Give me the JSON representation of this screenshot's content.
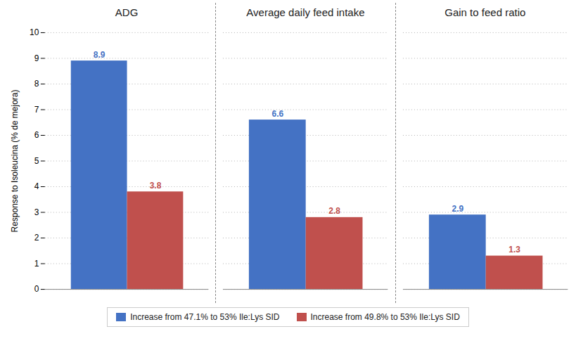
{
  "chart_data": [
    {
      "type": "bar",
      "title": "ADG",
      "categories": [
        null
      ],
      "series": [
        {
          "name": "Increase from 47.1% to 53% Ile:Lys SID",
          "color": "#4472C4",
          "values": [
            8.9
          ]
        },
        {
          "name": "Increase from 49.8% to 53% Ile:Lys SID",
          "color": "#C0504D",
          "values": [
            3.8
          ]
        }
      ],
      "y_label": "Response to Isoleucina (% de mejora)",
      "ylim": [
        0,
        10
      ],
      "yticks": [
        0,
        1,
        2,
        3,
        4,
        5,
        6,
        7,
        8,
        9,
        10
      ],
      "grid": true,
      "data_labels": true,
      "legend": "bottom",
      "tick_labels": "y"
    },
    {
      "type": "bar",
      "title": "Average daily feed intake",
      "categories": [
        null
      ],
      "series": [
        {
          "name": "Increase from 47.1% to 53% Ile:Lys SID",
          "color": "#4472C4",
          "values": [
            6.6
          ]
        },
        {
          "name": "Increase from 49.8% to 53% Ile:Lys SID",
          "color": "#C0504D",
          "values": [
            2.8
          ]
        }
      ],
      "ylim": [
        0,
        10
      ],
      "yticks": [
        0,
        1,
        2,
        3,
        4,
        5,
        6,
        7,
        8,
        9,
        10
      ],
      "grid": true,
      "data_labels": true,
      "legend": "bottom",
      "tick_labels": false
    },
    {
      "type": "bar",
      "title": "Gain to feed ratio",
      "categories": [
        null
      ],
      "series": [
        {
          "name": "Increase from 47.1% to 53% Ile:Lys SID",
          "color": "#4472C4",
          "values": [
            2.9
          ]
        },
        {
          "name": "Increase from 49.8% to 53% Ile:Lys SID",
          "color": "#C0504D",
          "values": [
            1.3
          ]
        }
      ],
      "ylim": [
        0,
        10
      ],
      "yticks": [
        0,
        1,
        2,
        3,
        4,
        5,
        6,
        7,
        8,
        9,
        10
      ],
      "grid": true,
      "data_labels": true,
      "legend": "bottom",
      "tick_labels": false
    }
  ]
}
